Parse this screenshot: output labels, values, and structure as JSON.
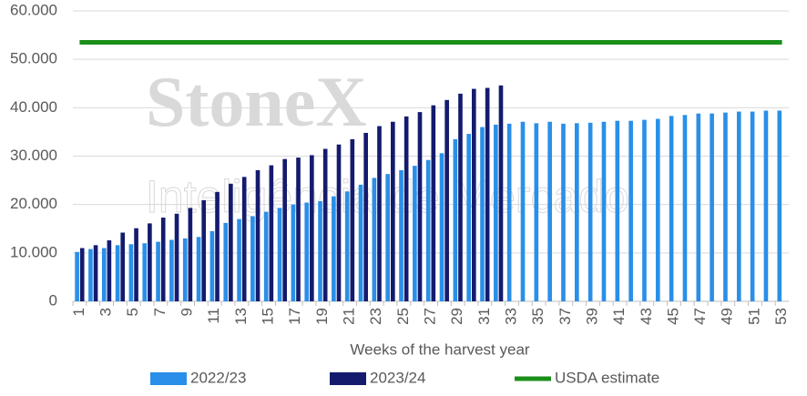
{
  "chart_data": {
    "type": "bar",
    "watermark": [
      "StoneX",
      "Inteligência de Mercado"
    ],
    "x_label": "Weeks of the harvest year",
    "categories": [
      "1",
      null,
      "3",
      null,
      "5",
      null,
      "7",
      null,
      "9",
      null,
      "11",
      null,
      "13",
      null,
      "15",
      null,
      "17",
      null,
      "19",
      null,
      "21",
      null,
      "23",
      null,
      "25",
      null,
      "27",
      null,
      "29",
      null,
      "31",
      null,
      "33",
      null,
      "35",
      null,
      "37",
      null,
      "39",
      null,
      "41",
      null,
      "43",
      null,
      "45",
      null,
      "47",
      null,
      "49",
      null,
      "51",
      null,
      "53"
    ],
    "ylim": [
      0,
      60000
    ],
    "yticks": [
      0,
      {
        "value": 10000,
        "label": "10.000"
      },
      {
        "value": 20000,
        "label": "20.000"
      },
      {
        "value": 30000,
        "label": "30.000"
      },
      {
        "value": 40000,
        "label": "40.000"
      },
      {
        "value": 50000,
        "label": "50.000"
      },
      {
        "value": 60000,
        "label": "60.000"
      }
    ],
    "grid": true,
    "series": [
      {
        "name": "2022/23",
        "type": "bar",
        "color": "#2a8fe8",
        "values": [
          10200,
          10800,
          11000,
          11600,
          11800,
          12000,
          12300,
          12700,
          13000,
          13300,
          14500,
          16200,
          17000,
          17600,
          18500,
          19300,
          20000,
          20400,
          20700,
          21700,
          22700,
          24100,
          25500,
          26300,
          27100,
          28000,
          29200,
          30600,
          33500,
          34600,
          36000,
          36500,
          36700,
          37100,
          36800,
          37100,
          36700,
          36800,
          36900,
          37100,
          37300,
          37300,
          37500,
          37700,
          38300,
          38500,
          38800,
          38800,
          39000,
          39200,
          39200,
          39400,
          39400
        ]
      },
      {
        "name": "2023/24",
        "type": "bar",
        "color": "#141b6e",
        "values": [
          11000,
          11600,
          12600,
          14200,
          15100,
          16100,
          17300,
          18100,
          19300,
          20900,
          22600,
          24300,
          25700,
          27100,
          28100,
          29400,
          29700,
          30200,
          31500,
          32400,
          33500,
          34800,
          36200,
          37100,
          38200,
          39100,
          40500,
          41600,
          42900,
          43900,
          44100,
          44600,
          null,
          null,
          null,
          null,
          null,
          null,
          null,
          null,
          null,
          null,
          null,
          null,
          null,
          null,
          null,
          null,
          null,
          null,
          null,
          null,
          null
        ]
      },
      {
        "name": "USDA estimate",
        "type": "line",
        "color": "#1a8f1a",
        "values": [
          53500,
          53500,
          53500,
          53500,
          53500,
          53500,
          53500,
          53500,
          53500,
          53500,
          53500,
          53500,
          53500,
          53500,
          53500,
          53500,
          53500,
          53500,
          53500,
          53500,
          53500,
          53500,
          53500,
          53500,
          53500,
          53500,
          53500,
          53500,
          53500,
          53500,
          53500,
          53500,
          53500,
          53500,
          53500,
          53500,
          53500,
          53500,
          53500,
          53500,
          53500,
          53500,
          53500,
          53500,
          53500,
          53500,
          53500,
          53500,
          53500,
          53500,
          53500,
          53500,
          53500
        ]
      }
    ]
  }
}
